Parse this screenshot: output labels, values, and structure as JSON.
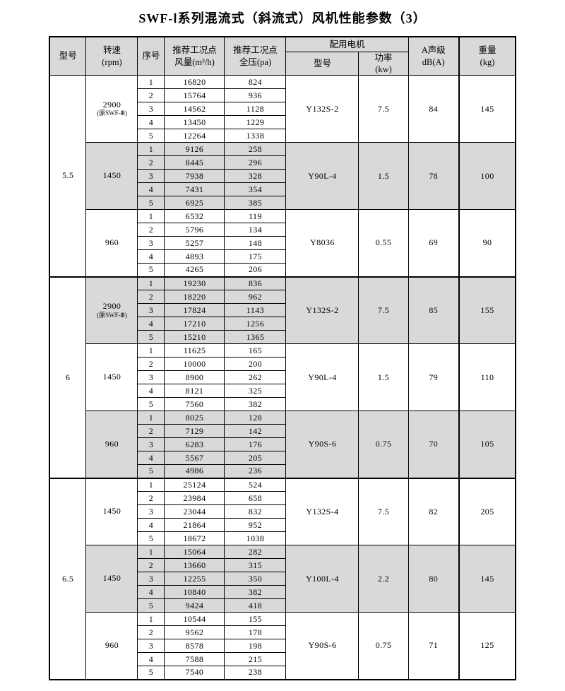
{
  "title": "SWF-Ⅰ系列混流式（斜流式）风机性能参数（3）",
  "headers": {
    "model": "型号",
    "speed": "转速\n(rpm)",
    "seq": "序号",
    "flow": "推荐工况点\n风量(m³/h)",
    "pressure": "推荐工况点\n全压(pa)",
    "motor_group": "配用电机",
    "motor_model": "型号",
    "motor_power": "功率\n(kw)",
    "noise": "A声级\ndB(A)",
    "weight": "重量\n(kg)"
  },
  "colors": {
    "shaded_row_bg": "#d9d9d9",
    "border": "#000000"
  },
  "table": {
    "sections": [
      {
        "model": "5.5",
        "groups": [
          {
            "speed": "2900",
            "speed_note": "(原SWF-Ⅲ)",
            "shaded": false,
            "rows": [
              [
                1,
                16820,
                824
              ],
              [
                2,
                15764,
                936
              ],
              [
                3,
                14562,
                1128
              ],
              [
                4,
                13450,
                1229
              ],
              [
                5,
                12264,
                1338
              ]
            ],
            "motor_model": "Y132S-2",
            "power": "7.5",
            "noise": "84",
            "weight": "145"
          },
          {
            "speed": "1450",
            "shaded": true,
            "rows": [
              [
                1,
                9126,
                258
              ],
              [
                2,
                8445,
                296
              ],
              [
                3,
                7938,
                328
              ],
              [
                4,
                7431,
                354
              ],
              [
                5,
                6925,
                385
              ]
            ],
            "motor_model": "Y90L-4",
            "power": "1.5",
            "noise": "78",
            "weight": "100"
          },
          {
            "speed": "960",
            "shaded": false,
            "rows": [
              [
                1,
                6532,
                119
              ],
              [
                2,
                5796,
                134
              ],
              [
                3,
                5257,
                148
              ],
              [
                4,
                4893,
                175
              ],
              [
                5,
                4265,
                206
              ]
            ],
            "motor_model": "Y8036",
            "power": "0.55",
            "noise": "69",
            "weight": "90"
          }
        ]
      },
      {
        "model": "6",
        "groups": [
          {
            "speed": "2900",
            "speed_note": "(原SWF-Ⅲ)",
            "shaded": true,
            "rows": [
              [
                1,
                19230,
                836
              ],
              [
                2,
                18220,
                962
              ],
              [
                3,
                17824,
                1143
              ],
              [
                4,
                17210,
                1256
              ],
              [
                5,
                15210,
                1365
              ]
            ],
            "motor_model": "Y132S-2",
            "power": "7.5",
            "noise": "85",
            "weight": "155"
          },
          {
            "speed": "1450",
            "shaded": false,
            "rows": [
              [
                1,
                11625,
                165
              ],
              [
                2,
                10000,
                200
              ],
              [
                3,
                8900,
                262
              ],
              [
                4,
                8121,
                325
              ],
              [
                5,
                7560,
                382
              ]
            ],
            "motor_model": "Y90L-4",
            "power": "1.5",
            "noise": "79",
            "weight": "110"
          },
          {
            "speed": "960",
            "shaded": true,
            "rows": [
              [
                1,
                8025,
                128
              ],
              [
                2,
                7129,
                142
              ],
              [
                3,
                6283,
                176
              ],
              [
                4,
                5567,
                205
              ],
              [
                5,
                4986,
                236
              ]
            ],
            "motor_model": "Y90S-6",
            "power": "0.75",
            "noise": "70",
            "weight": "105"
          }
        ]
      },
      {
        "model": "6.5",
        "groups": [
          {
            "speed": "1450",
            "shaded": false,
            "rows": [
              [
                1,
                25124,
                524
              ],
              [
                2,
                23984,
                658
              ],
              [
                3,
                23044,
                832
              ],
              [
                4,
                21864,
                952
              ],
              [
                5,
                18672,
                1038
              ]
            ],
            "motor_model": "Y132S-4",
            "power": "7.5",
            "noise": "82",
            "weight": "205"
          },
          {
            "speed": "1450",
            "shaded": true,
            "rows": [
              [
                1,
                15064,
                282
              ],
              [
                2,
                13660,
                315
              ],
              [
                3,
                12255,
                350
              ],
              [
                4,
                10840,
                382
              ],
              [
                5,
                9424,
                418
              ]
            ],
            "motor_model": "Y100L-4",
            "power": "2.2",
            "noise": "80",
            "weight": "145"
          },
          {
            "speed": "960",
            "shaded": false,
            "rows": [
              [
                1,
                10544,
                155
              ],
              [
                2,
                9562,
                178
              ],
              [
                3,
                8578,
                198
              ],
              [
                4,
                7588,
                215
              ],
              [
                5,
                7540,
                238
              ]
            ],
            "motor_model": "Y90S-6",
            "power": "0.75",
            "noise": "71",
            "weight": "125"
          }
        ]
      }
    ]
  }
}
